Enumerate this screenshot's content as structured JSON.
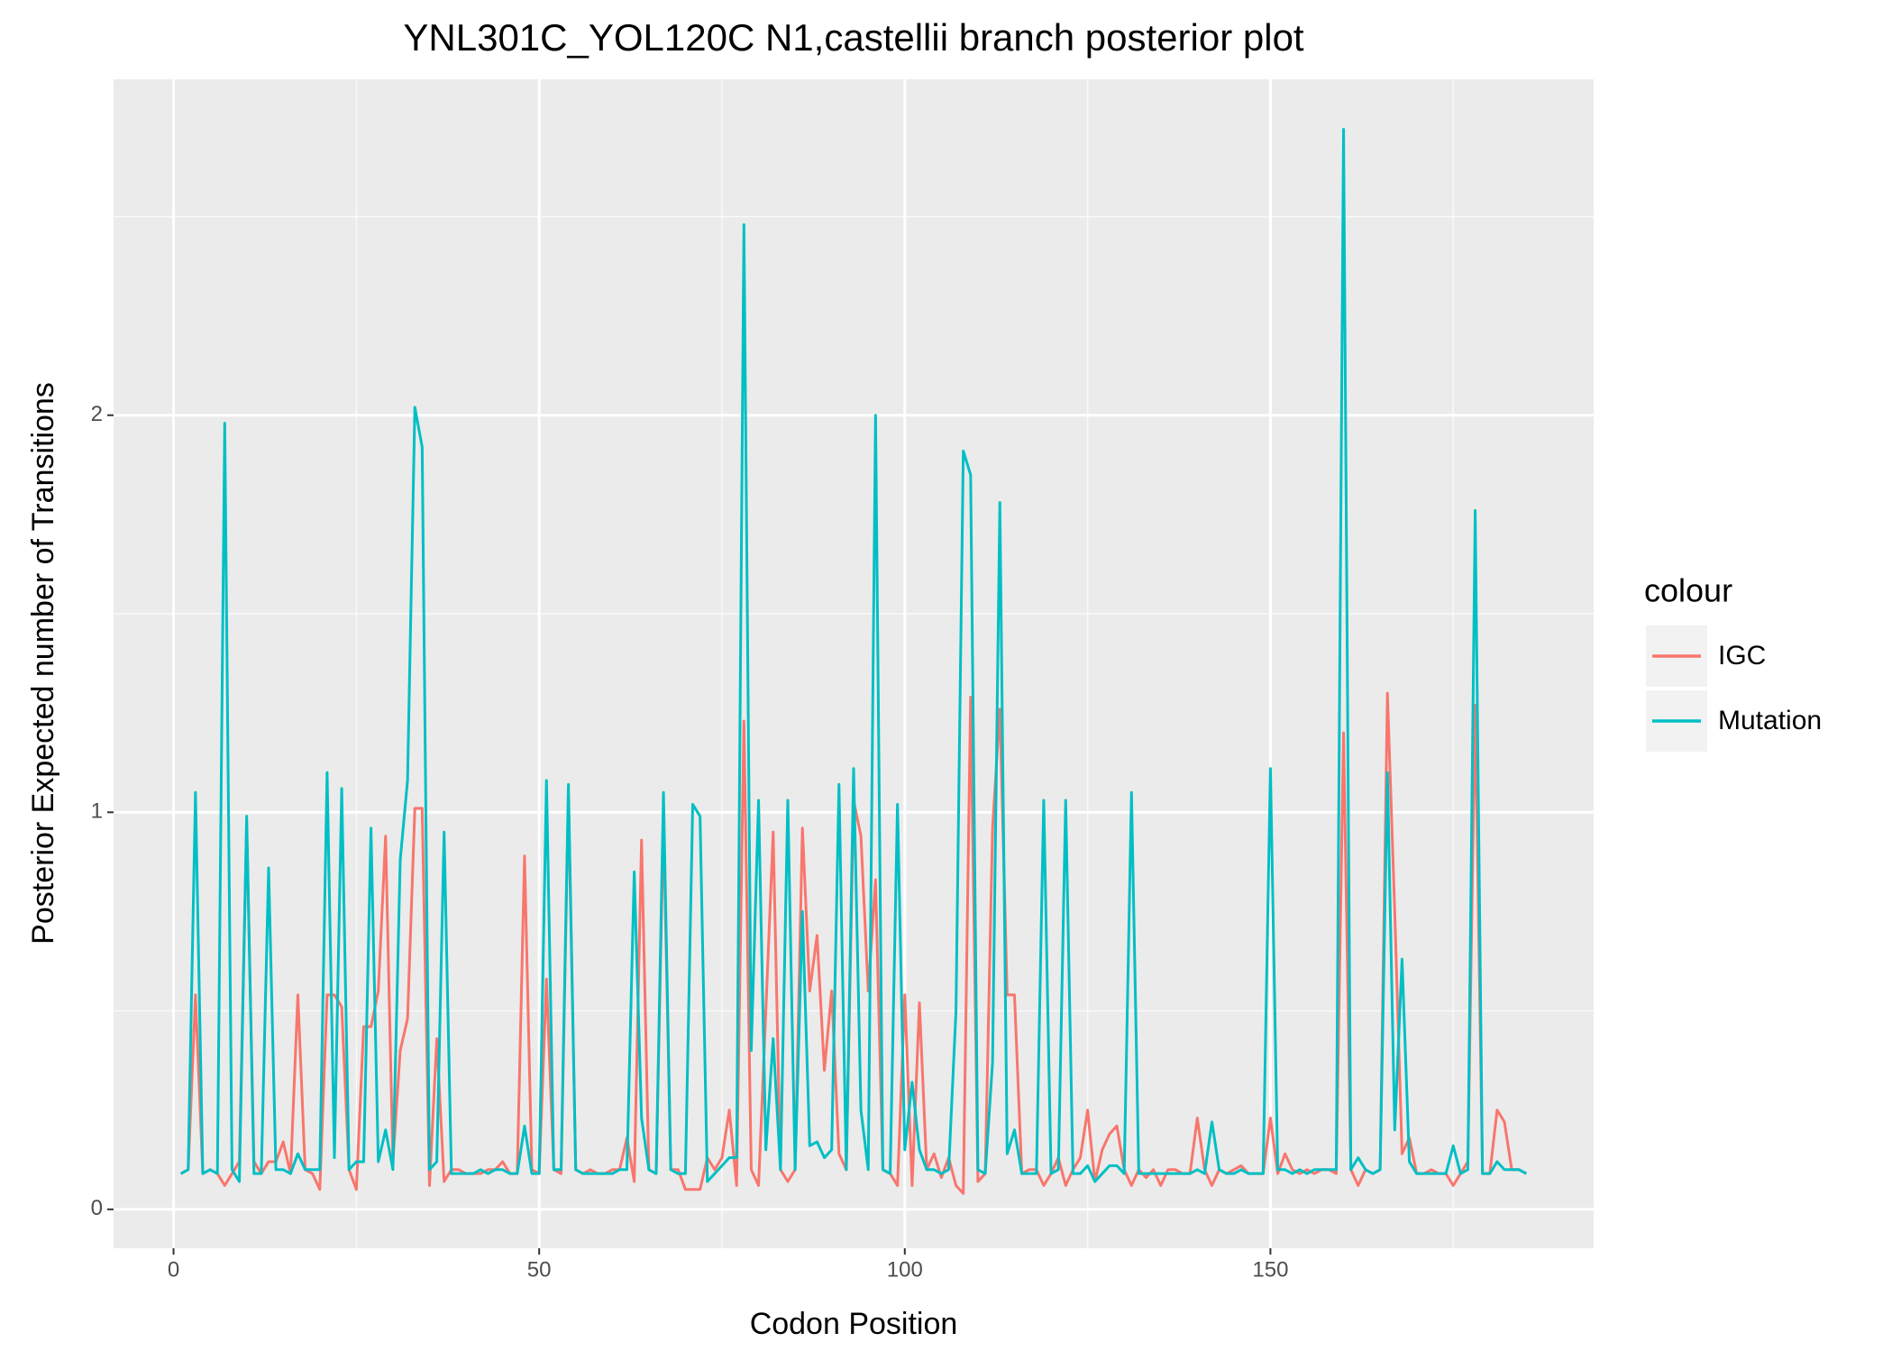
{
  "chart_data": {
    "type": "line",
    "title": "YNL301C_YOL120C N1,castellii branch posterior plot",
    "x_label": "Codon Position",
    "y_label": "Posterior Expected number of Transitions",
    "legend_title": "colour",
    "legend_position": "right",
    "grid": true,
    "xlim": [
      -8.2,
      194.2
    ],
    "ylim": [
      -0.098,
      2.846
    ],
    "xticks": [
      0,
      50,
      100,
      150
    ],
    "yticks": [
      0,
      1,
      2
    ],
    "x_minor_grid": [
      25,
      75,
      125,
      175
    ],
    "y_minor_grid": [
      0.5,
      1.5,
      2.5
    ],
    "x": [
      1,
      2,
      3,
      4,
      5,
      6,
      7,
      8,
      9,
      10,
      11,
      12,
      13,
      14,
      15,
      16,
      17,
      18,
      19,
      20,
      21,
      22,
      23,
      24,
      25,
      26,
      27,
      28,
      29,
      30,
      31,
      32,
      33,
      34,
      35,
      36,
      37,
      38,
      39,
      40,
      41,
      42,
      43,
      44,
      45,
      46,
      47,
      48,
      49,
      50,
      51,
      52,
      53,
      54,
      55,
      56,
      57,
      58,
      59,
      60,
      61,
      62,
      63,
      64,
      65,
      66,
      67,
      68,
      69,
      70,
      71,
      72,
      73,
      74,
      75,
      76,
      77,
      78,
      79,
      80,
      81,
      82,
      83,
      84,
      85,
      86,
      87,
      88,
      89,
      90,
      91,
      92,
      93,
      94,
      95,
      96,
      97,
      98,
      99,
      100,
      101,
      102,
      103,
      104,
      105,
      106,
      107,
      108,
      109,
      110,
      111,
      112,
      113,
      114,
      115,
      116,
      117,
      118,
      119,
      120,
      121,
      122,
      123,
      124,
      125,
      126,
      127,
      128,
      129,
      130,
      131,
      132,
      133,
      134,
      135,
      136,
      137,
      138,
      139,
      140,
      141,
      142,
      143,
      144,
      145,
      146,
      147,
      148,
      149,
      150,
      151,
      152,
      153,
      154,
      155,
      156,
      157,
      158,
      159,
      160,
      161,
      162,
      163,
      164,
      165,
      166,
      167,
      168,
      169,
      170,
      171,
      172,
      173,
      174,
      175,
      176,
      177,
      178,
      179,
      180,
      181,
      182,
      183,
      184,
      185
    ],
    "series": [
      {
        "name": "IGC",
        "color": "#f8766d",
        "values": [
          0.09,
          0.1,
          0.54,
          0.09,
          0.1,
          0.09,
          0.06,
          0.09,
          0.12,
          0.97,
          0.12,
          0.09,
          0.12,
          0.12,
          0.17,
          0.09,
          0.54,
          0.1,
          0.09,
          0.05,
          0.54,
          0.54,
          0.51,
          0.1,
          0.05,
          0.46,
          0.46,
          0.55,
          0.94,
          0.12,
          0.4,
          0.48,
          1.01,
          1.01,
          0.06,
          0.43,
          0.07,
          0.1,
          0.1,
          0.09,
          0.09,
          0.09,
          0.1,
          0.1,
          0.12,
          0.09,
          0.09,
          0.89,
          0.1,
          0.09,
          0.58,
          0.1,
          0.09,
          1.04,
          0.1,
          0.09,
          0.1,
          0.09,
          0.09,
          0.1,
          0.1,
          0.18,
          0.07,
          0.93,
          0.1,
          0.09,
          0.98,
          0.1,
          0.1,
          0.05,
          0.05,
          0.05,
          0.13,
          0.1,
          0.13,
          0.25,
          0.06,
          1.23,
          0.1,
          0.06,
          0.5,
          0.95,
          0.1,
          0.07,
          0.1,
          0.96,
          0.55,
          0.69,
          0.35,
          0.55,
          0.14,
          0.1,
          1.03,
          0.94,
          0.55,
          0.83,
          0.1,
          0.09,
          0.06,
          0.54,
          0.06,
          0.52,
          0.1,
          0.14,
          0.08,
          0.13,
          0.06,
          0.04,
          1.29,
          0.07,
          0.09,
          0.96,
          1.26,
          0.54,
          0.54,
          0.09,
          0.1,
          0.1,
          0.06,
          0.09,
          0.13,
          0.06,
          0.1,
          0.13,
          0.25,
          0.07,
          0.15,
          0.19,
          0.21,
          0.1,
          0.06,
          0.1,
          0.08,
          0.1,
          0.06,
          0.1,
          0.1,
          0.09,
          0.09,
          0.23,
          0.1,
          0.06,
          0.1,
          0.09,
          0.1,
          0.11,
          0.09,
          0.09,
          0.09,
          0.23,
          0.09,
          0.14,
          0.1,
          0.09,
          0.1,
          0.09,
          0.1,
          0.1,
          0.09,
          1.2,
          0.1,
          0.06,
          0.1,
          0.09,
          0.1,
          1.3,
          0.75,
          0.14,
          0.18,
          0.09,
          0.09,
          0.1,
          0.09,
          0.09,
          0.06,
          0.09,
          0.12,
          1.27,
          0.09,
          0.09,
          0.25,
          0.22,
          0.1,
          0.1,
          0.09
        ]
      },
      {
        "name": "Mutation",
        "color": "#00bfc4",
        "values": [
          0.09,
          0.1,
          1.05,
          0.09,
          0.1,
          0.09,
          1.98,
          0.1,
          0.07,
          0.99,
          0.09,
          0.09,
          0.86,
          0.1,
          0.1,
          0.09,
          0.14,
          0.1,
          0.1,
          0.1,
          1.1,
          0.13,
          1.06,
          0.1,
          0.12,
          0.12,
          0.96,
          0.12,
          0.2,
          0.1,
          0.88,
          1.08,
          2.02,
          1.92,
          0.1,
          0.12,
          0.95,
          0.09,
          0.09,
          0.09,
          0.09,
          0.1,
          0.09,
          0.1,
          0.1,
          0.09,
          0.09,
          0.21,
          0.09,
          0.09,
          1.08,
          0.1,
          0.1,
          1.07,
          0.1,
          0.09,
          0.09,
          0.09,
          0.09,
          0.09,
          0.1,
          0.1,
          0.85,
          0.23,
          0.1,
          0.09,
          1.05,
          0.1,
          0.09,
          0.09,
          1.02,
          0.99,
          0.07,
          0.09,
          0.11,
          0.13,
          0.13,
          2.48,
          0.4,
          1.03,
          0.15,
          0.43,
          0.1,
          1.03,
          0.1,
          0.75,
          0.16,
          0.17,
          0.13,
          0.15,
          1.07,
          0.1,
          1.11,
          0.25,
          0.1,
          2.0,
          0.1,
          0.09,
          1.02,
          0.15,
          0.32,
          0.15,
          0.1,
          0.1,
          0.09,
          0.1,
          0.5,
          1.91,
          1.85,
          0.1,
          0.09,
          0.37,
          1.78,
          0.14,
          0.2,
          0.09,
          0.09,
          0.09,
          1.03,
          0.09,
          0.1,
          1.03,
          0.09,
          0.09,
          0.11,
          0.07,
          0.09,
          0.11,
          0.11,
          0.09,
          1.05,
          0.09,
          0.09,
          0.09,
          0.09,
          0.09,
          0.09,
          0.09,
          0.09,
          0.1,
          0.09,
          0.22,
          0.1,
          0.09,
          0.09,
          0.1,
          0.09,
          0.09,
          0.09,
          1.11,
          0.1,
          0.1,
          0.09,
          0.1,
          0.09,
          0.1,
          0.1,
          0.1,
          0.1,
          2.72,
          0.1,
          0.13,
          0.1,
          0.09,
          0.1,
          1.1,
          0.2,
          0.63,
          0.12,
          0.09,
          0.09,
          0.09,
          0.09,
          0.09,
          0.16,
          0.09,
          0.1,
          1.76,
          0.09,
          0.09,
          0.12,
          0.1,
          0.1,
          0.1,
          0.09
        ]
      }
    ]
  }
}
